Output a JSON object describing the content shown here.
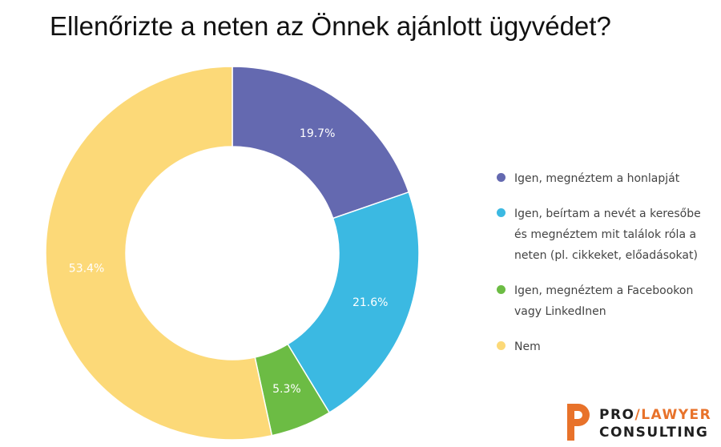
{
  "chart_data": {
    "type": "pie",
    "title": "Ellenőrizte a neten az Önnek ajánlott ügyvédet?",
    "categories": [
      "Igen, megnéztem a honlapját",
      "Igen, beírtam a nevét a keresőbe és megnéztem mit találok róla a neten (pl. cikkeket, előadásokat)",
      "Igen, megnéztem a Facebookon vagy LinkedInen",
      "Nem"
    ],
    "values": [
      19.7,
      21.6,
      5.3,
      53.4
    ],
    "labels": [
      "19.7%",
      "21.6%",
      "5.3%",
      "53.4%"
    ],
    "colors": [
      "#6469b0",
      "#3bb9e2",
      "#6cbc44",
      "#fcd978"
    ],
    "donut": true,
    "legend_position": "right"
  },
  "brand": {
    "line1_a": "PRO",
    "line1_b": "/LAWYER",
    "line2": "CONSULTING",
    "colors": {
      "accent": "#e8722a",
      "text": "#1f1f1f"
    }
  }
}
